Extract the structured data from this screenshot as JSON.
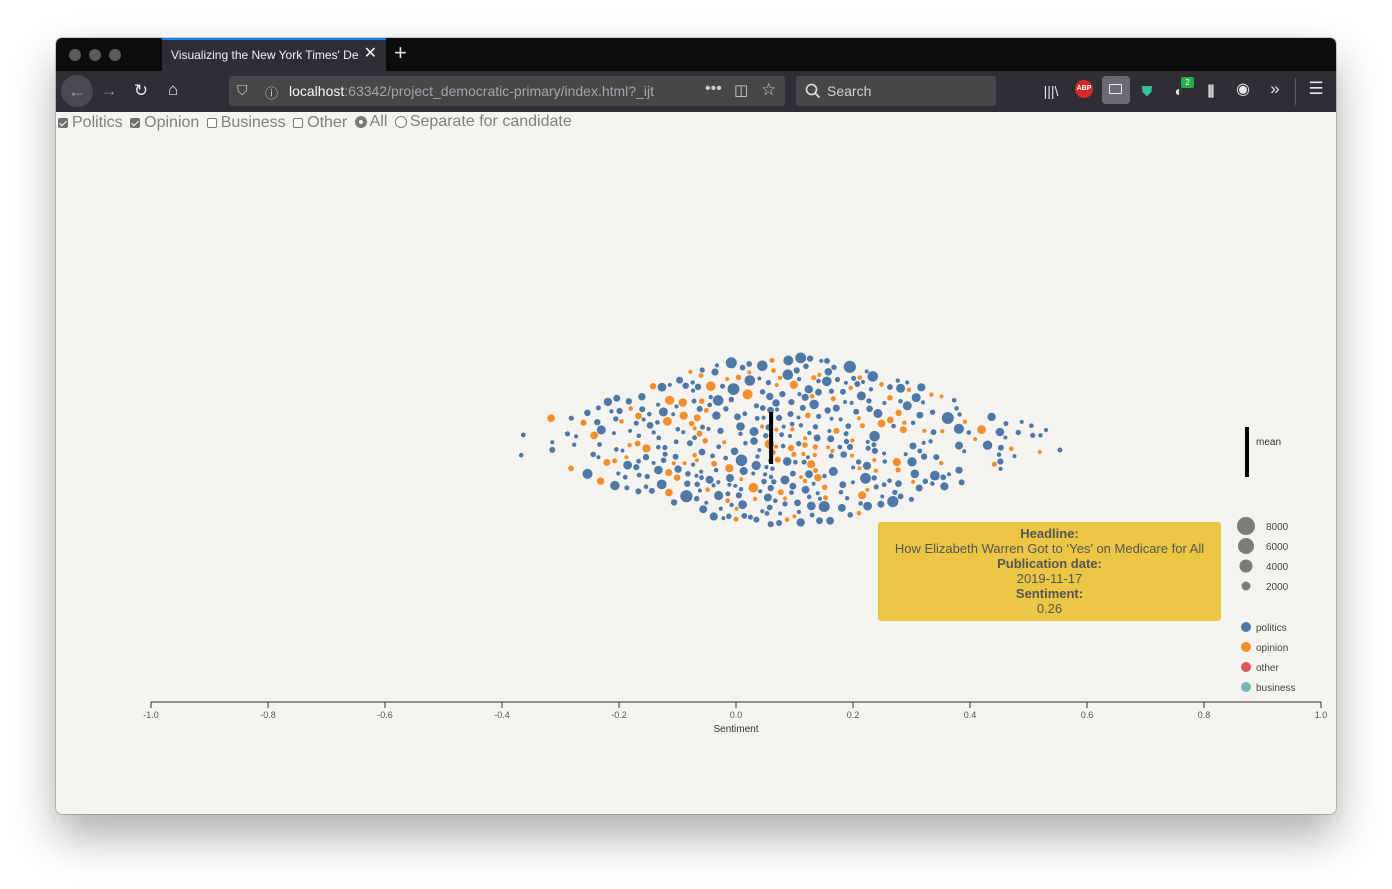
{
  "browser": {
    "tab_title": "Visualizing the New York Times' Democratic Primary Coverage",
    "url_host": "localhost",
    "url_rest": ":63342/project_democratic-primary/index.html?_ijt",
    "search_placeholder": "Search",
    "extension_badge": "2",
    "abp_label": "ABP"
  },
  "controls": {
    "checkboxes": [
      {
        "label": "Politics",
        "checked": true
      },
      {
        "label": "Opinion",
        "checked": true
      },
      {
        "label": "Business",
        "checked": false
      },
      {
        "label": "Other",
        "checked": false
      }
    ],
    "radios": [
      {
        "label": "All",
        "checked": true
      },
      {
        "label": "Separate for candidate",
        "checked": false
      }
    ]
  },
  "tooltip": {
    "headline_label": "Headline:",
    "headline": "How Elizabeth Warren Got to ‘Yes’ on Medicare for All",
    "date_label": "Publication date:",
    "date": "2019-11-17",
    "sentiment_label": "Sentiment:",
    "sentiment": "0.26"
  },
  "chart_data": {
    "type": "scatter",
    "subtype": "beeswarm",
    "xlabel": "Sentiment",
    "xlim": [
      -1.0,
      1.0
    ],
    "x_ticks": [
      "-1.0",
      "-0.8",
      "-0.6",
      "-0.4",
      "-0.2",
      "0.0",
      "0.2",
      "0.4",
      "0.6",
      "0.8",
      "1.0"
    ],
    "mean": 0.06,
    "mean_label": "mean",
    "size_legend": [
      {
        "label": "8000",
        "value": 8000
      },
      {
        "label": "6000",
        "value": 6000
      },
      {
        "label": "4000",
        "value": 4000
      },
      {
        "label": "2000",
        "value": 2000
      }
    ],
    "category_legend": [
      {
        "label": "politics",
        "color": "#4e79a7"
      },
      {
        "label": "opinion",
        "color": "#f28e2b"
      },
      {
        "label": "other",
        "color": "#e15759"
      },
      {
        "label": "business",
        "color": "#76b7b2"
      }
    ]
  }
}
